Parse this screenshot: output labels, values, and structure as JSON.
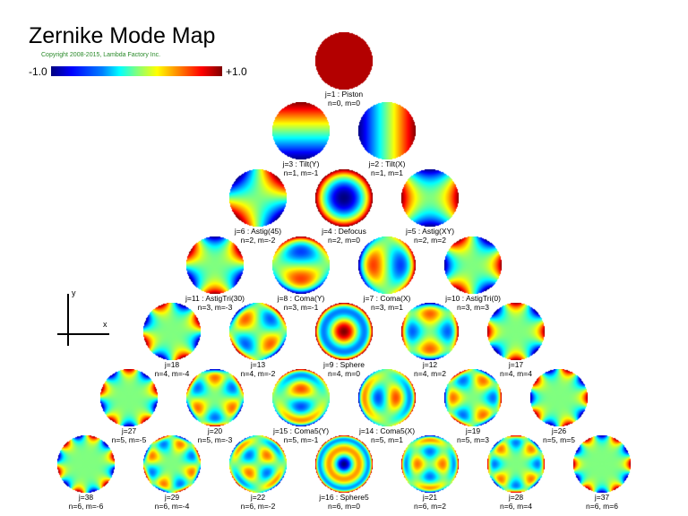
{
  "title": "Zernike Mode Map",
  "copyright": "Copyright 2008-2015, Lambda Factory Inc.",
  "colorbar": {
    "min_label": "-1.0",
    "max_label": "+1.0"
  },
  "axes": {
    "x_label": "x",
    "y_label": "y"
  },
  "modes": [
    {
      "j": 1,
      "n": 0,
      "m": 0,
      "label": "j=1 : Piston",
      "nm": "n=0, m=0"
    },
    {
      "j": 3,
      "n": 1,
      "m": -1,
      "label": "j=3 : Tilt(Y)",
      "nm": "n=1, m=-1"
    },
    {
      "j": 2,
      "n": 1,
      "m": 1,
      "label": "j=2 : Tilt(X)",
      "nm": "n=1, m=1"
    },
    {
      "j": 6,
      "n": 2,
      "m": -2,
      "label": "j=6 : Astig(45)",
      "nm": "n=2, m=-2"
    },
    {
      "j": 4,
      "n": 2,
      "m": 0,
      "label": "j=4 : Defocus",
      "nm": "n=2, m=0"
    },
    {
      "j": 5,
      "n": 2,
      "m": 2,
      "label": "j=5 : Astig(XY)",
      "nm": "n=2, m=2"
    },
    {
      "j": 11,
      "n": 3,
      "m": -3,
      "label": "j=11 : AstigTri(30)",
      "nm": "n=3, m=-3"
    },
    {
      "j": 8,
      "n": 3,
      "m": -1,
      "label": "j=8 : Coma(Y)",
      "nm": "n=3, m=-1"
    },
    {
      "j": 7,
      "n": 3,
      "m": 1,
      "label": "j=7 : Coma(X)",
      "nm": "n=3, m=1"
    },
    {
      "j": 10,
      "n": 3,
      "m": 3,
      "label": "j=10 : AstigTri(0)",
      "nm": "n=3, m=3"
    },
    {
      "j": 18,
      "n": 4,
      "m": -4,
      "label": "j=18",
      "nm": "n=4, m=-4"
    },
    {
      "j": 13,
      "n": 4,
      "m": -2,
      "label": "j=13",
      "nm": "n=4, m=-2"
    },
    {
      "j": 9,
      "n": 4,
      "m": 0,
      "label": "j=9 : Sphere",
      "nm": "n=4, m=0"
    },
    {
      "j": 12,
      "n": 4,
      "m": 2,
      "label": "j=12",
      "nm": "n=4, m=2"
    },
    {
      "j": 17,
      "n": 4,
      "m": 4,
      "label": "j=17",
      "nm": "n=4, m=4"
    },
    {
      "j": 27,
      "n": 5,
      "m": -5,
      "label": "j=27",
      "nm": "n=5, m=-5"
    },
    {
      "j": 20,
      "n": 5,
      "m": -3,
      "label": "j=20",
      "nm": "n=5, m=-3"
    },
    {
      "j": 15,
      "n": 5,
      "m": -1,
      "label": "j=15 : Coma5(Y)",
      "nm": "n=5, m=-1"
    },
    {
      "j": 14,
      "n": 5,
      "m": 1,
      "label": "j=14 : Coma5(X)",
      "nm": "n=5, m=1"
    },
    {
      "j": 19,
      "n": 5,
      "m": 3,
      "label": "j=19",
      "nm": "n=5, m=3"
    },
    {
      "j": 26,
      "n": 5,
      "m": 5,
      "label": "j=26",
      "nm": "n=5, m=5"
    },
    {
      "j": 38,
      "n": 6,
      "m": -6,
      "label": "j=38",
      "nm": "n=6, m=-6"
    },
    {
      "j": 29,
      "n": 6,
      "m": -4,
      "label": "j=29",
      "nm": "n=6, m=-4"
    },
    {
      "j": 22,
      "n": 6,
      "m": -2,
      "label": "j=22",
      "nm": "n=6, m=-2"
    },
    {
      "j": 16,
      "n": 6,
      "m": 0,
      "label": "j=16 : Sphere5",
      "nm": "n=6, m=0"
    },
    {
      "j": 21,
      "n": 6,
      "m": 2,
      "label": "j=21",
      "nm": "n=6, m=2"
    },
    {
      "j": 28,
      "n": 6,
      "m": 4,
      "label": "j=28",
      "nm": "n=6, m=4"
    },
    {
      "j": 37,
      "n": 6,
      "m": 6,
      "label": "j=37",
      "nm": "n=6, m=6"
    }
  ]
}
